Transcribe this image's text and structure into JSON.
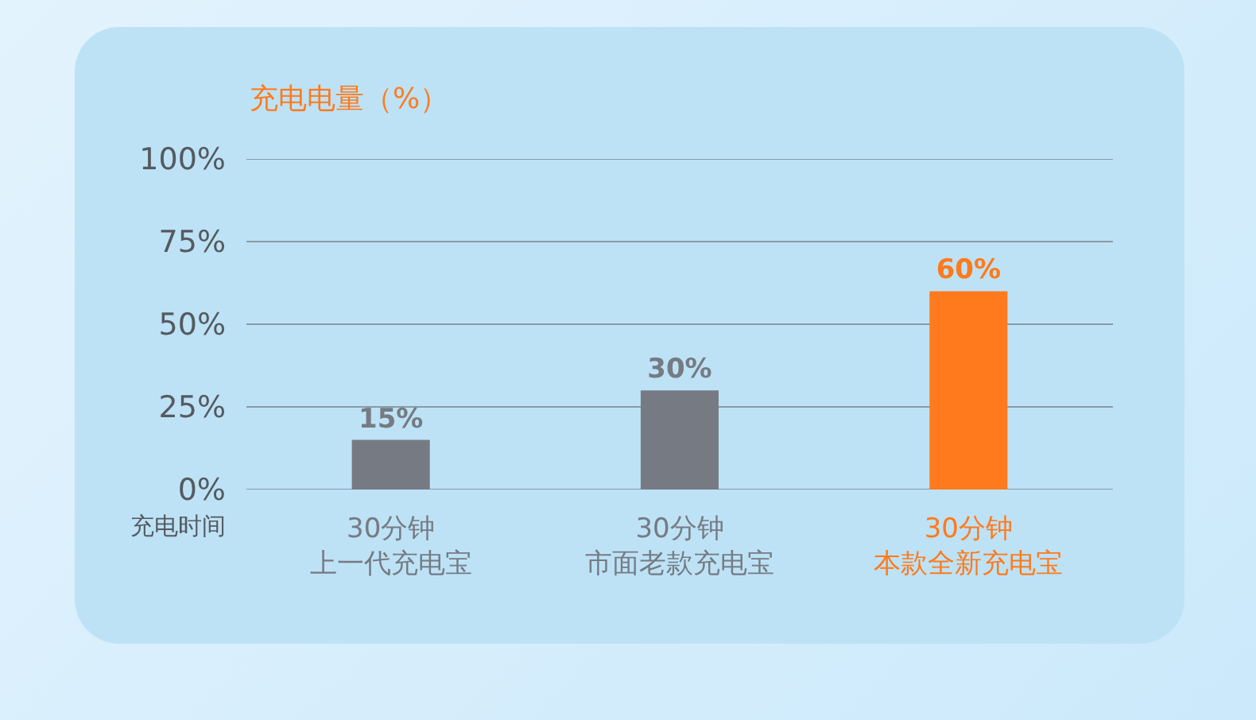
{
  "chart_data": {
    "type": "bar",
    "ylabel": "充电电量（%）",
    "xlabel": "充电时间",
    "categories": [
      "30分钟上一代充电宝",
      "30分钟市面老款充电宝",
      "30分钟本款全新充电宝"
    ],
    "values": [
      15,
      30,
      60
    ],
    "colors": [
      "#767b83",
      "#767b83",
      "#ff7a1c"
    ],
    "value_labels": [
      "15%",
      "30%",
      "60%"
    ],
    "ylim": [
      0,
      100
    ],
    "yticks": [
      {
        "value": 0,
        "label": "0%"
      },
      {
        "value": 25,
        "label": "25%"
      },
      {
        "value": 50,
        "label": "50%"
      },
      {
        "value": 75,
        "label": "75%"
      },
      {
        "value": 100,
        "label": "100%"
      }
    ],
    "grid": "y",
    "legend": false
  }
}
